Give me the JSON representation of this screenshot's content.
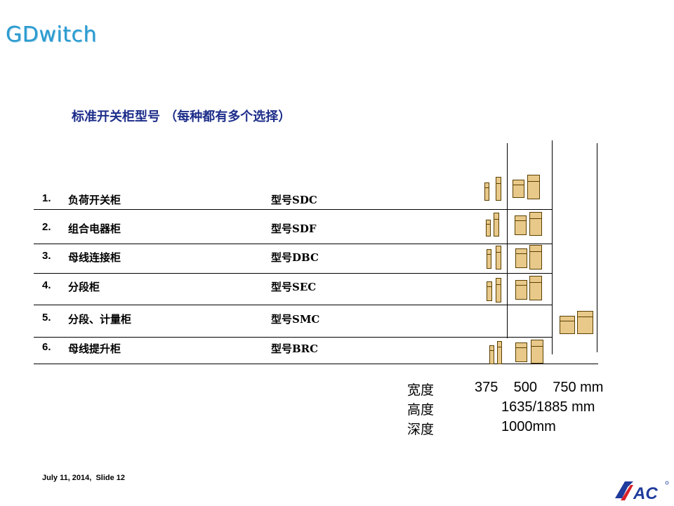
{
  "header": {
    "brand": "GDwitch"
  },
  "heading": "标准开关柜型号 （每种都有多个选择）",
  "rows": [
    {
      "num": "1.",
      "name": "负荷开关柜",
      "type": "型号SDC"
    },
    {
      "num": "2.",
      "name": "组合电器柜",
      "type": "型号SDF"
    },
    {
      "num": "3.",
      "name": "母线连接柜",
      "type": "型号DBC"
    },
    {
      "num": "4.",
      "name": "分段柜",
      "type": "型号SEC"
    },
    {
      "num": "5.",
      "name": "分段、计量柜",
      "type": "型号SMC"
    },
    {
      "num": "6.",
      "name": "母线提升柜",
      "type": "型号BRC"
    }
  ],
  "specs": {
    "width_label": "宽度",
    "width_value": "375    500    750 mm",
    "height_label": "高度",
    "height_value": "1635/1885 mm",
    "depth_label": "深度",
    "depth_value": "1000mm"
  },
  "footer": "July 11, 2014,  Slide 12",
  "logo": {
    "text": "SAC",
    "color": "#1f3b9c",
    "accent": "#d8202a"
  },
  "colors": {
    "brand": "#2a9bd0",
    "heading": "#1d2d8a",
    "cabinet": "#e8c98a"
  }
}
